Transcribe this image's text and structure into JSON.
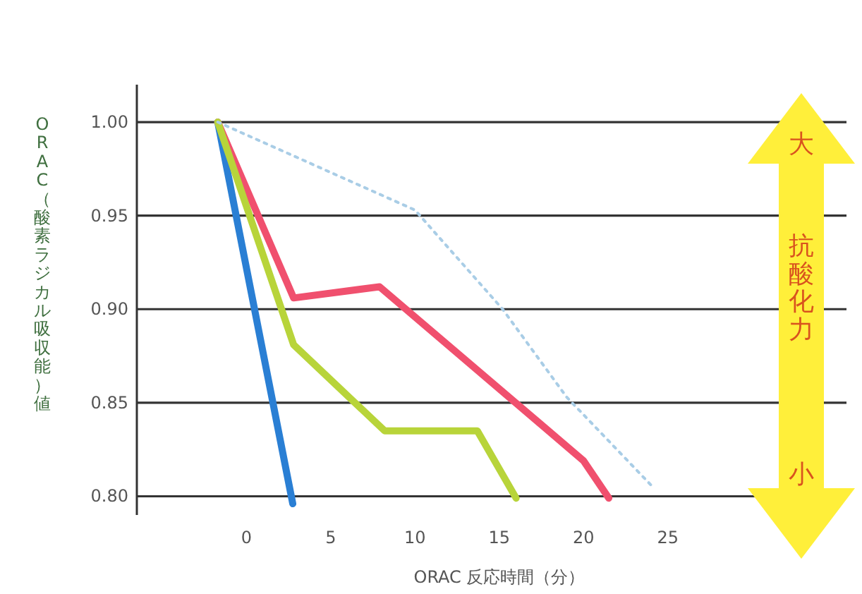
{
  "chart_data": {
    "type": "line",
    "xlabel": "ORAC 反応時間（分）",
    "ylabel": "ORAC（酸素ラジカル吸収能）値",
    "xlim": [
      -6.5,
      35.6
    ],
    "xticks": [
      0,
      5,
      10,
      15,
      20,
      25
    ],
    "ylim": [
      0.79,
      1.02
    ],
    "yticks": [
      {
        "value": 1.0,
        "label": "1.00"
      },
      {
        "value": 0.95,
        "label": "0.95"
      },
      {
        "value": 0.9,
        "label": "0.90"
      },
      {
        "value": 0.85,
        "label": "0.85"
      },
      {
        "value": 0.8,
        "label": "0.80"
      }
    ],
    "grid": "y",
    "marker": "none",
    "series": [
      {
        "color": "#2a7fd4",
        "x": [
          -1.7,
          2.75
        ],
        "values": [
          1.0,
          0.796
        ]
      },
      {
        "color": "#f0506e",
        "x": [
          -1.7,
          2.8,
          7.9,
          20,
          21.5
        ],
        "values": [
          1.0,
          0.906,
          0.912,
          0.819,
          0.799
        ]
      },
      {
        "color": "#b8d43a",
        "x": [
          -1.7,
          2.8,
          8.2,
          13.7,
          16
        ],
        "values": [
          1.0,
          0.881,
          0.835,
          0.835,
          0.799
        ]
      },
      {
        "color": "#a9cde6",
        "line_style": "dotted",
        "x": [
          -1.7,
          10,
          15.2,
          19,
          24
        ],
        "values": [
          1.0,
          0.953,
          0.9,
          0.853,
          0.806
        ]
      }
    ],
    "annotations": [
      "大",
      "抗酸化力",
      "小"
    ]
  }
}
